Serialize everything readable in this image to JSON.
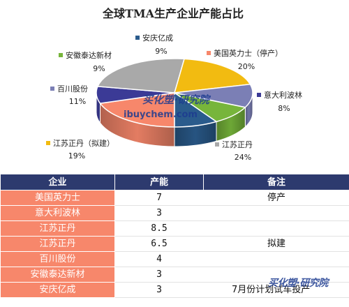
{
  "chart_data": {
    "type": "pie",
    "title": "全球TMA生产企业产能占比",
    "categories": [
      "美国英力士（停产）",
      "意大利波林",
      "江苏正丹",
      "江苏正丹（拟建）",
      "百川股份",
      "安徽泰达新材",
      "安庆亿成"
    ],
    "values": [
      20,
      8,
      24,
      19,
      11,
      9,
      9
    ],
    "labels": [
      "20%",
      "8%",
      "24%",
      "19%",
      "11%",
      "9%",
      "9%"
    ],
    "colors": [
      "#f7876b",
      "#3b3a96",
      "#a9a9a9",
      "#f2bb11",
      "#7b7fb5",
      "#77b53b",
      "#2a5b8c"
    ],
    "legend": "inline-labels"
  },
  "watermark": {
    "brand": "买化塑·研究院",
    "site": "ibuychem.com"
  },
  "table": {
    "headers": [
      "企业",
      "产能",
      "备注"
    ],
    "rows": [
      {
        "company": "美国英力士",
        "capacity": "7",
        "note": "停产"
      },
      {
        "company": "意大利波林",
        "capacity": "3",
        "note": ""
      },
      {
        "company": "江苏正丹",
        "capacity": "8.5",
        "note": ""
      },
      {
        "company": "江苏正丹",
        "capacity": "6.5",
        "note": "拟建"
      },
      {
        "company": "百川股份",
        "capacity": "4",
        "note": ""
      },
      {
        "company": "安徽泰达新材",
        "capacity": "3",
        "note": ""
      },
      {
        "company": "安庆亿成",
        "capacity": "3",
        "note": "7月份计划试车投产"
      }
    ]
  }
}
